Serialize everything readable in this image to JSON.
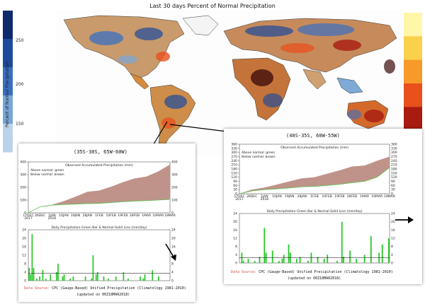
{
  "map": {
    "title": "Last 30 days Percent of Normal Precipitation",
    "colorbar_label": "Percent of Normal Precipitation",
    "colorbar_ticks": [
      "250",
      "200",
      "150"
    ],
    "wet_colors": [
      "#0d2a6e",
      "#1d4a9b",
      "#3a6fc2",
      "#78a6d8",
      "#b9d3ea"
    ],
    "dry_colors": [
      "#fff6a8",
      "#fbd04b",
      "#f79a2a",
      "#e8501c",
      "#a81b10",
      "#3a0808"
    ]
  },
  "panel_left": {
    "region": "(35S-30S, 65W-60W)",
    "source_label": "Data Source:",
    "source_text": "CPC (Gauge-Based) Unified Precipitation (Climatology 1981-2010)",
    "updated": "(updated on 00Z18MAR2018)"
  },
  "panel_right": {
    "region": "(40S-35S, 60W-55W)",
    "source_label": "Data Source:",
    "source_text": "CPC (Gauge-Based) Unified Precipitation (Climatology 1981-2010)",
    "updated": "(updated on 00Z18MAR2018)"
  },
  "chart_data": [
    {
      "type": "area",
      "panel": "panel_left",
      "title": "Observed Accumulated Precipitation (mm)",
      "legend": [
        "Above normal: green",
        "Below normal: brown"
      ],
      "x_dates": [
        "17DEC",
        "26DEC",
        "1JAN",
        "10JAN",
        "19JAN",
        "28JAN",
        "1FEB",
        "10FEB",
        "19FEB",
        "28FEB",
        "1MAR",
        "10MAR",
        "18MAR"
      ],
      "x_year_labels": [
        "2017",
        "2018"
      ],
      "ylim": [
        0,
        400
      ],
      "y_ticks": [
        0,
        100,
        200,
        300,
        400
      ],
      "colors": {
        "above": "#5fc24d",
        "below": "#bf938a"
      },
      "normal_accumulation": [
        0,
        40,
        63,
        92,
        127,
        165,
        175,
        205,
        240,
        270,
        285,
        325,
        380
      ],
      "observed_accumulation": [
        0,
        48,
        60,
        65,
        68,
        72,
        74,
        80,
        87,
        92,
        95,
        100,
        105
      ]
    },
    {
      "type": "bar",
      "panel": "panel_left",
      "title": "Daily Precipitation-Green Bar & Normal-Solid Line (mm/day)",
      "ylim": [
        0,
        24
      ],
      "y_ticks": [
        0,
        4,
        8,
        12,
        16,
        20,
        24
      ],
      "bar_color": "#2ec82e",
      "normal_line_mm_day": 3.5,
      "values_mm_day": [
        6,
        3,
        22,
        6,
        0,
        1,
        0,
        2,
        0,
        5,
        0,
        1,
        0,
        0,
        3,
        0,
        0,
        0,
        4,
        8,
        0,
        0,
        2,
        3,
        0,
        0,
        0,
        1,
        0,
        2,
        0,
        0,
        0,
        0,
        0,
        0,
        0,
        2,
        0,
        0,
        0,
        1,
        12,
        0,
        3,
        4,
        0,
        0,
        0,
        2,
        0,
        0,
        1,
        0,
        0,
        0,
        0,
        2,
        0,
        0,
        0,
        0,
        4,
        0,
        0,
        1,
        0,
        0,
        0,
        0,
        0,
        0,
        0,
        2,
        0,
        1,
        3,
        0,
        0,
        0,
        0,
        5,
        0,
        0,
        0,
        2,
        0,
        0,
        0,
        0,
        0,
        0,
        0
      ]
    },
    {
      "type": "area",
      "panel": "panel_right",
      "title": "Observed Accumulated Precipitation (mm)",
      "legend": [
        "Above normal: green",
        "Below normal: brown"
      ],
      "x_dates": [
        "17DEC",
        "26DEC",
        "1JAN",
        "10JAN",
        "19JAN",
        "28JAN",
        "1FEB",
        "10FEB",
        "19FEB",
        "28FEB",
        "1MAR",
        "10MAR",
        "18MAR"
      ],
      "x_year_labels": [
        "2017",
        "2018"
      ],
      "ylim": [
        0,
        360
      ],
      "y_ticks": [
        0,
        30,
        60,
        90,
        120,
        150,
        180,
        210,
        240,
        270,
        300,
        330,
        360
      ],
      "colors": {
        "above": "#5fc24d",
        "below": "#bf938a"
      },
      "normal_accumulation": [
        0,
        30,
        45,
        67,
        90,
        112,
        120,
        145,
        170,
        198,
        205,
        240,
        270
      ],
      "observed_accumulation": [
        0,
        20,
        30,
        35,
        42,
        50,
        53,
        60,
        68,
        80,
        90,
        120,
        190
      ]
    },
    {
      "type": "bar",
      "panel": "panel_right",
      "title": "Daily Precipitation-Green Bar & Normal-Solid Line (mm/day)",
      "ylim": [
        0,
        24
      ],
      "y_ticks": [
        0,
        4,
        8,
        12,
        16,
        20,
        24
      ],
      "bar_color": "#2ec82e",
      "normal_line_mm_day": 2.5,
      "values_mm_day": [
        0,
        5,
        1,
        0,
        0,
        2,
        0,
        0,
        0,
        1,
        0,
        0,
        3,
        0,
        0,
        17,
        5,
        0,
        0,
        0,
        6,
        0,
        0,
        0,
        1,
        0,
        2,
        4,
        0,
        0,
        9,
        5,
        0,
        0,
        0,
        2,
        0,
        3,
        0,
        0,
        0,
        0,
        1,
        0,
        5,
        0,
        0,
        0,
        3,
        0,
        0,
        0,
        2,
        0,
        4,
        0,
        0,
        0,
        0,
        0,
        1,
        0,
        0,
        20,
        3,
        0,
        0,
        0,
        6,
        0,
        0,
        0,
        2,
        0,
        0,
        0,
        0,
        4,
        0,
        0,
        0,
        13,
        0,
        0,
        0,
        0,
        5,
        0,
        9,
        0,
        0,
        0,
        12
      ]
    }
  ]
}
